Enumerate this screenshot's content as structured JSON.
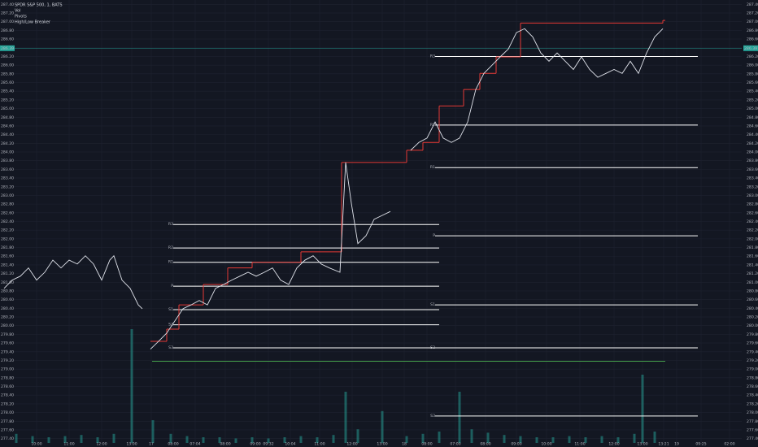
{
  "chart_data": {
    "type": "line",
    "title": "SPDR S&P 500, 1, BATS",
    "indicators": [
      "Vol",
      "Pivots",
      "High/Low Breaker"
    ],
    "xlim": [
      16,
      912
    ],
    "ylim": [
      277.3,
      287.5
    ],
    "grid": true,
    "yticks": [
      {
        "value": 287.4,
        "label": "287.40"
      },
      {
        "value": 287.2,
        "label": "287.20"
      },
      {
        "value": 287.0,
        "label": "287.00"
      },
      {
        "value": 286.8,
        "label": "286.80"
      },
      {
        "value": 286.6,
        "label": "286.60"
      },
      {
        "value": 286.4,
        "label": "286.40"
      },
      {
        "value": 286.2,
        "label": "286.20"
      },
      {
        "value": 286.0,
        "label": "286.00"
      },
      {
        "value": 285.8,
        "label": "285.80"
      },
      {
        "value": 285.6,
        "label": "285.60"
      },
      {
        "value": 285.4,
        "label": "285.40"
      },
      {
        "value": 285.2,
        "label": "285.20"
      },
      {
        "value": 285.0,
        "label": "285.00"
      },
      {
        "value": 284.8,
        "label": "284.80"
      },
      {
        "value": 284.6,
        "label": "284.60"
      },
      {
        "value": 284.4,
        "label": "284.40"
      },
      {
        "value": 284.2,
        "label": "284.20"
      },
      {
        "value": 284.0,
        "label": "284.00"
      },
      {
        "value": 283.8,
        "label": "283.80"
      },
      {
        "value": 283.6,
        "label": "283.60"
      },
      {
        "value": 283.4,
        "label": "283.40"
      },
      {
        "value": 283.2,
        "label": "283.20"
      },
      {
        "value": 283.0,
        "label": "283.00"
      },
      {
        "value": 282.8,
        "label": "282.80"
      },
      {
        "value": 282.6,
        "label": "282.60"
      },
      {
        "value": 282.4,
        "label": "282.40"
      },
      {
        "value": 282.2,
        "label": "282.20"
      },
      {
        "value": 282.0,
        "label": "282.00"
      },
      {
        "value": 281.8,
        "label": "281.80"
      },
      {
        "value": 281.6,
        "label": "281.60"
      },
      {
        "value": 281.4,
        "label": "281.40"
      },
      {
        "value": 281.2,
        "label": "281.20"
      },
      {
        "value": 281.0,
        "label": "281.00"
      },
      {
        "value": 280.8,
        "label": "280.80"
      },
      {
        "value": 280.6,
        "label": "280.60"
      },
      {
        "value": 280.4,
        "label": "280.40"
      },
      {
        "value": 280.2,
        "label": "280.20"
      },
      {
        "value": 280.0,
        "label": "280.00"
      },
      {
        "value": 279.8,
        "label": "279.80"
      },
      {
        "value": 279.6,
        "label": "279.60"
      },
      {
        "value": 279.4,
        "label": "279.40"
      },
      {
        "value": 279.2,
        "label": "279.20"
      },
      {
        "value": 279.0,
        "label": "279.00"
      },
      {
        "value": 278.8,
        "label": "278.80"
      },
      {
        "value": 278.6,
        "label": "278.60"
      },
      {
        "value": 278.4,
        "label": "278.40"
      },
      {
        "value": 278.2,
        "label": "278.20"
      },
      {
        "value": 278.0,
        "label": "278.00"
      },
      {
        "value": 277.8,
        "label": "277.80"
      },
      {
        "value": 277.6,
        "label": "277.60"
      },
      {
        "value": 277.4,
        "label": "277.40"
      }
    ],
    "xticks": [
      {
        "value": 45,
        "label": "10:00"
      },
      {
        "value": 85,
        "label": "11:00"
      },
      {
        "value": 125,
        "label": "12:00"
      },
      {
        "value": 162,
        "label": "13:00"
      },
      {
        "value": 186,
        "label": "17"
      },
      {
        "value": 213,
        "label": "08:00"
      },
      {
        "value": 240,
        "label": "07:04"
      },
      {
        "value": 277,
        "label": "08:00"
      },
      {
        "value": 314,
        "label": "09:00"
      },
      {
        "value": 330,
        "label": "09:32"
      },
      {
        "value": 357,
        "label": "10:04"
      },
      {
        "value": 393,
        "label": "11:00"
      },
      {
        "value": 433,
        "label": "12:00"
      },
      {
        "value": 470,
        "label": "13:00"
      },
      {
        "value": 497,
        "label": "18"
      },
      {
        "value": 525,
        "label": "08:00"
      },
      {
        "value": 560,
        "label": "07:00"
      },
      {
        "value": 597,
        "label": "08:00"
      },
      {
        "value": 635,
        "label": "09:00"
      },
      {
        "value": 672,
        "label": "10:00"
      },
      {
        "value": 713,
        "label": "11:00"
      },
      {
        "value": 755,
        "label": "12:00"
      },
      {
        "value": 790,
        "label": "13:00"
      },
      {
        "value": 816,
        "label": "13:21"
      },
      {
        "value": 832,
        "label": "19"
      },
      {
        "value": 862,
        "label": "09:25"
      },
      {
        "value": 897,
        "label": "02:00"
      }
    ],
    "series": [
      {
        "name": "SPY",
        "color": "#e0e3eb",
        "x": [
          5,
          15,
          25,
          35,
          45,
          55,
          65,
          75,
          85,
          95,
          105,
          115,
          125,
          135,
          140,
          150,
          160,
          170,
          175,
          null,
          185,
          195,
          205,
          215,
          225,
          235,
          245,
          255,
          265,
          275,
          285,
          295,
          305,
          315,
          325,
          335,
          345,
          355,
          365,
          375,
          385,
          395,
          405,
          418,
          425,
          432,
          440,
          450,
          460,
          470,
          480,
          null,
          505,
          515,
          525,
          535,
          545,
          555,
          565,
          575,
          585,
          595,
          605,
          615,
          625,
          635,
          645,
          655,
          665,
          675,
          685,
          695,
          705,
          715,
          725,
          735,
          745,
          755,
          765,
          775,
          785,
          795,
          805,
          815
        ],
        "values": [
          280.86,
          281.05,
          281.14,
          281.33,
          281.05,
          281.23,
          281.51,
          281.33,
          281.51,
          281.42,
          281.61,
          281.42,
          281.05,
          281.51,
          281.61,
          281.05,
          280.86,
          280.48,
          280.39,
          null,
          279.46,
          279.64,
          279.83,
          280.11,
          280.39,
          280.48,
          280.58,
          280.48,
          280.86,
          280.95,
          281.05,
          281.14,
          281.23,
          281.14,
          281.23,
          281.33,
          281.05,
          280.95,
          281.33,
          281.51,
          281.61,
          281.42,
          281.33,
          281.23,
          283.76,
          282.82,
          281.89,
          282.07,
          282.45,
          282.54,
          282.63,
          null,
          284.04,
          284.22,
          284.32,
          284.69,
          284.32,
          284.22,
          284.32,
          284.69,
          285.44,
          285.81,
          286.0,
          286.19,
          286.37,
          286.75,
          286.84,
          286.65,
          286.28,
          286.09,
          286.28,
          286.09,
          285.9,
          286.19,
          285.9,
          285.72,
          285.81,
          285.9,
          285.81,
          286.09,
          285.81,
          286.28,
          286.65,
          286.84
        ]
      }
    ],
    "breaker": {
      "color": "#e53935",
      "x": [
        185,
        205,
        220,
        250,
        280,
        310,
        370,
        420,
        500,
        520,
        540,
        570,
        590,
        610,
        640,
        815
      ],
      "values": [
        279.64,
        279.92,
        280.48,
        280.95,
        281.33,
        281.46,
        281.7,
        283.76,
        284.04,
        284.22,
        285.06,
        285.44,
        285.81,
        286.19,
        286.97,
        287.03
      ]
    },
    "pivots": [
      {
        "xstart": 213,
        "xend": 540,
        "labels": [
          "R3",
          "R2",
          "R1",
          "P",
          "S1",
          "S2",
          "S3"
        ],
        "values": [
          282.33,
          281.79,
          281.46,
          280.91,
          280.37,
          280.02,
          279.49
        ]
      },
      {
        "xstart": 535,
        "xend": 858,
        "labels": [
          "R3",
          "R2",
          "R1",
          "P",
          "S1",
          "S2",
          "S3"
        ],
        "values": [
          286.2,
          284.62,
          283.64,
          282.07,
          280.48,
          279.49,
          277.92
        ]
      }
    ],
    "low_line": {
      "color": "#4caf50",
      "xstart": 187,
      "xend": 818,
      "value": 279.18
    },
    "last_price": {
      "color": "#26a69a",
      "value": 286.39
    },
    "volume": {
      "color": "#26a69a",
      "vlim": [
        0,
        100
      ],
      "x": [
        20,
        40,
        60,
        80,
        100,
        120,
        140,
        162,
        188,
        210,
        230,
        250,
        270,
        290,
        310,
        330,
        350,
        370,
        390,
        410,
        425,
        440,
        470,
        500,
        520,
        540,
        565,
        580,
        600,
        620,
        640,
        660,
        680,
        700,
        720,
        740,
        760,
        780,
        790,
        805
      ],
      "values": [
        8,
        6,
        5,
        6,
        7,
        5,
        8,
        100,
        20,
        8,
        6,
        5,
        5,
        4,
        5,
        4,
        5,
        6,
        5,
        7,
        45,
        12,
        28,
        6,
        8,
        10,
        45,
        12,
        9,
        7,
        6,
        5,
        5,
        6,
        5,
        6,
        5,
        8,
        60,
        10
      ]
    }
  }
}
